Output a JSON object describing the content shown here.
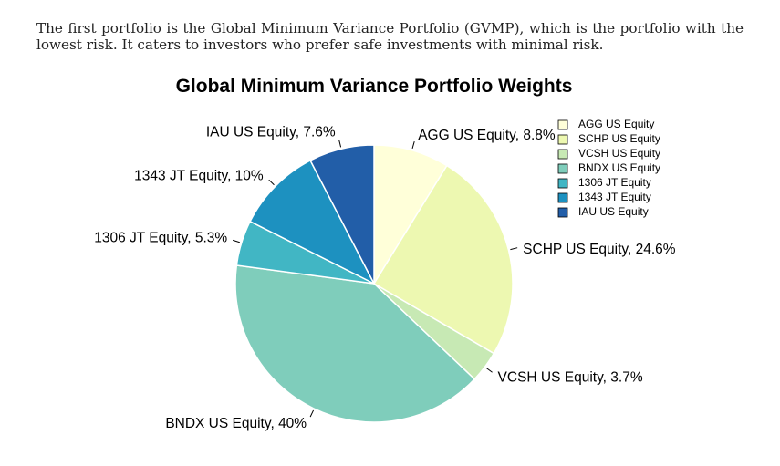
{
  "intro_text": "The first portfolio is the Global Minimum Variance Portfolio (GVMP), which is the portfolio with the lowest risk. It caters to investors who prefer safe investments with minimal risk.",
  "chart_data": {
    "type": "pie",
    "title": "Global Minimum Variance Portfolio Weights",
    "legend_position": "top-right",
    "slices": [
      {
        "name": "AGG US Equity",
        "value": 8.8,
        "label": "AGG US Equity, 8.8%",
        "color": "#ffffd9"
      },
      {
        "name": "SCHP US Equity",
        "value": 24.6,
        "label": "SCHP US Equity, 24.6%",
        "color": "#edf8b1"
      },
      {
        "name": "VCSH US Equity",
        "value": 3.7,
        "label": "VCSH US Equity, 3.7%",
        "color": "#c7e9b4"
      },
      {
        "name": "BNDX US Equity",
        "value": 40,
        "label": "BNDX US Equity, 40%",
        "color": "#7fcdbb"
      },
      {
        "name": "1306 JT Equity",
        "value": 5.3,
        "label": "1306 JT Equity, 5.3%",
        "color": "#41b6c4"
      },
      {
        "name": "1343 JT Equity",
        "value": 10,
        "label": "1343 JT Equity, 10%",
        "color": "#1d91c0"
      },
      {
        "name": "IAU US Equity",
        "value": 7.6,
        "label": "IAU US Equity, 7.6%",
        "color": "#225ea8"
      }
    ]
  }
}
